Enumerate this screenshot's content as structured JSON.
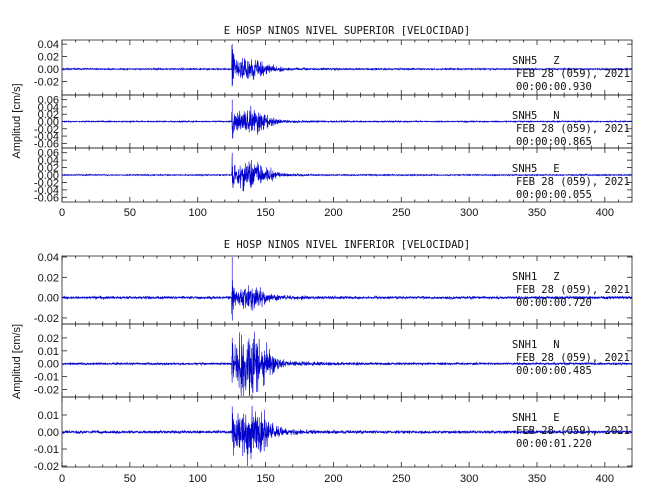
{
  "chart_data": [
    {
      "type": "line",
      "title": "E HOSP NINOS NIVEL SUPERIOR [VELOCIDAD]",
      "ylabel": "Amplitud [cm/s]",
      "xlim": [
        0,
        420
      ],
      "xticks": [
        0,
        50,
        100,
        150,
        200,
        250,
        300,
        350,
        400
      ],
      "traces": [
        {
          "station": "SNH5",
          "component": "Z",
          "date": "FEB 28 (059), 2021",
          "start": "00:00:00.930",
          "ylim": [
            -0.04,
            0.045
          ],
          "yticks": [
            -0.02,
            0.0,
            0.02,
            0.04
          ],
          "yticklabels": [
            "-0.02",
            "0.00",
            "0.02",
            "0.04"
          ],
          "onset": 125,
          "peak": 0.04,
          "pre": 0.0012,
          "coda": 0.012,
          "decay": 26,
          "seed": 11
        },
        {
          "station": "SNH5",
          "component": "N",
          "date": "FEB 28 (059), 2021",
          "start": "00:00:00.865",
          "ylim": [
            -0.07,
            0.07
          ],
          "yticks": [
            -0.06,
            -0.04,
            -0.02,
            0.0,
            0.02,
            0.04,
            0.06
          ],
          "yticklabels": [
            "-0.06",
            "-0.04",
            "-0.02",
            "0.00",
            "0.02",
            "0.04",
            "0.06"
          ],
          "onset": 125,
          "peak": 0.06,
          "pre": 0.0015,
          "coda": 0.03,
          "decay": 22,
          "seed": 23
        },
        {
          "station": "SNH5",
          "component": "E",
          "date": "FEB 28 (059), 2021",
          "start": "00:00:00.055",
          "ylim": [
            -0.07,
            0.07
          ],
          "yticks": [
            -0.06,
            -0.04,
            -0.02,
            0.0,
            0.02,
            0.04,
            0.06
          ],
          "yticklabels": [
            "-0.06",
            "-0.04",
            "-0.02",
            "0.00",
            "0.02",
            "0.04",
            "0.06"
          ],
          "onset": 125,
          "peak": 0.06,
          "pre": 0.0015,
          "coda": 0.03,
          "decay": 22,
          "seed": 37
        }
      ]
    },
    {
      "type": "line",
      "title": "E HOSP NINOS NIVEL INFERIOR [VELOCIDAD]",
      "ylabel": "Amplitud [cm/s]",
      "xlim": [
        0,
        420
      ],
      "xticks": [
        0,
        50,
        100,
        150,
        200,
        250,
        300,
        350,
        400
      ],
      "traces": [
        {
          "station": "SNH1",
          "component": "Z",
          "date": "FEB 28 (059), 2021",
          "start": "00:00:00.720",
          "ylim": [
            -0.025,
            0.04
          ],
          "yticks": [
            -0.02,
            0.0,
            0.02,
            0.04
          ],
          "yticklabels": [
            "-0.02",
            "0.00",
            "0.02",
            "0.04"
          ],
          "onset": 125,
          "peak": 0.04,
          "pre": 0.0012,
          "coda": 0.007,
          "decay": 26,
          "seed": 41
        },
        {
          "station": "SNH1",
          "component": "N",
          "date": "FEB 28 (059), 2021",
          "start": "00:00:00.485",
          "ylim": [
            -0.025,
            0.03
          ],
          "yticks": [
            -0.02,
            -0.01,
            0.0,
            0.01,
            0.02
          ],
          "yticklabels": [
            "-0.02",
            "-0.01",
            "0.00",
            "0.01",
            "0.02"
          ],
          "onset": 125,
          "peak": 0.02,
          "pre": 0.0008,
          "coda": 0.018,
          "decay": 24,
          "seed": 53
        },
        {
          "station": "SNH1",
          "component": "E",
          "date": "FEB 28 (059), 2021",
          "start": "00:00:01.220",
          "ylim": [
            -0.02,
            0.02
          ],
          "yticks": [
            -0.02,
            -0.01,
            0.0,
            0.01
          ],
          "yticklabels": [
            "-0.02",
            "-0.01",
            "0.00",
            "0.01"
          ],
          "onset": 125,
          "peak": 0.015,
          "pre": 0.0008,
          "coda": 0.011,
          "decay": 24,
          "seed": 67
        }
      ]
    }
  ]
}
